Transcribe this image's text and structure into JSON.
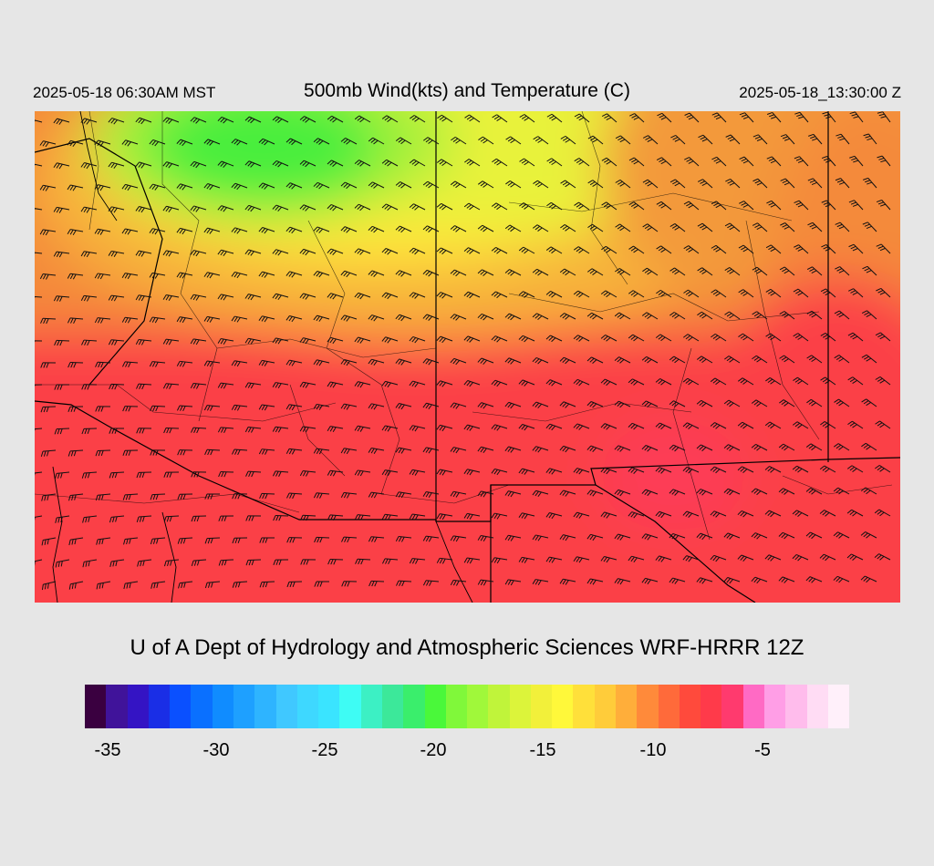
{
  "header": {
    "valid_local": "2025-05-18 06:30AM MST",
    "title": "500mb Wind(kts) and Temperature (C)",
    "valid_utc": "2025-05-18_13:30:00 Z"
  },
  "map": {
    "field": "500mb temperature (C) with wind barbs (kts)",
    "colors": {
      "warm_south": "#fb3f46",
      "mid_orange": "#f48a3a",
      "yellow_band": "#ffe83a",
      "green_core": "#4aee3c",
      "pink_spots": "#ff3a8a",
      "barb": "#111111",
      "border": "#000000"
    }
  },
  "credit": "U of A Dept of Hydrology and Atmospheric Sciences WRF-HRRR 12Z",
  "legend": {
    "colors": [
      "#3a0040",
      "#40139a",
      "#3414c4",
      "#1a2ee6",
      "#0a50ff",
      "#0a70ff",
      "#108cff",
      "#1ea0ff",
      "#2eb4ff",
      "#40c8ff",
      "#3ed8ff",
      "#3ae4ff",
      "#3efcf4",
      "#3cf0c4",
      "#3ce89a",
      "#3aee6c",
      "#4af83a",
      "#80f83a",
      "#a0f83a",
      "#c0f43a",
      "#dcf43a",
      "#f2f03a",
      "#fff83a",
      "#ffe03a",
      "#ffcc3a",
      "#ffae3a",
      "#ff8a3a",
      "#ff6a3a",
      "#ff4a3c",
      "#ff3a4a",
      "#ff3a6e",
      "#ff6ac4",
      "#ff9ee6",
      "#ffbcec",
      "#ffdcf4",
      "#fff0fa"
    ],
    "ticks": [
      "-35",
      "-30",
      "-25",
      "-20",
      "-15",
      "-10",
      "-5"
    ]
  }
}
